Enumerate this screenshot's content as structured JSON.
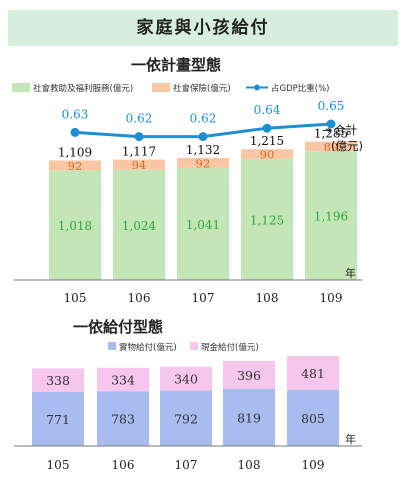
{
  "banner": {
    "title": "家庭與小孩給付"
  },
  "chart_data": [
    {
      "type": "bar",
      "title": "一依計畫型態",
      "categories": [
        "105",
        "106",
        "107",
        "108",
        "109"
      ],
      "x_unit": "年",
      "series": [
        {
          "name": "社會救助及福利服務(億元)",
          "color": "#c4e5b6",
          "label_color": "#2eaa3a",
          "values": [
            1018,
            1024,
            1041,
            1125,
            1196
          ]
        },
        {
          "name": "社會保險(億元)",
          "color": "#f9c7a4",
          "label_color": "#e06a1c",
          "values": [
            92,
            94,
            92,
            90,
            89
          ]
        }
      ],
      "totals": [
        1109,
        1117,
        1132,
        1215,
        1285
      ],
      "totals_label": "合計\n(億元)",
      "line_series": {
        "name": "占GDP比重(%)",
        "color": "#1f8fd3",
        "values": [
          0.63,
          0.62,
          0.62,
          0.64,
          0.65
        ]
      },
      "ylim": [
        0,
        1300
      ]
    },
    {
      "type": "bar",
      "title": "一依給付型態",
      "categories": [
        "105",
        "106",
        "107",
        "108",
        "109"
      ],
      "x_unit": "年",
      "series": [
        {
          "name": "實物給付(億元)",
          "color": "#a8bcf0",
          "label_color": "#333333",
          "values": [
            771,
            783,
            792,
            819,
            805
          ]
        },
        {
          "name": "現金給付(億元)",
          "color": "#f7c6ec",
          "label_color": "#333333",
          "values": [
            338,
            334,
            340,
            396,
            481
          ]
        }
      ],
      "ylim": [
        0,
        1300
      ]
    }
  ],
  "arrow_glyph": "→"
}
